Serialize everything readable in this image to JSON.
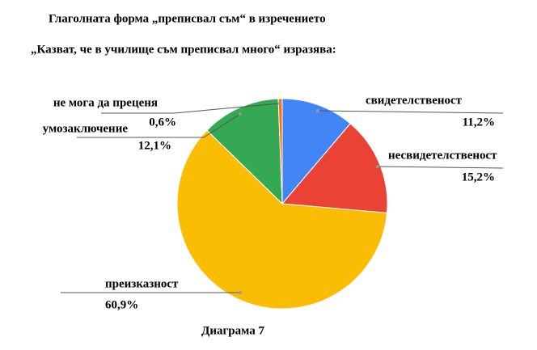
{
  "chart_data": {
    "type": "pie",
    "title": "Глаголната форма „преписвал съм“ в изречението",
    "subtitle": "„Казват, че в училище  съм преписвал много“ изразява:",
    "caption": "Диаграма 7",
    "categories": [
      "свидетелственост",
      "несвидетелственост",
      "преизказност",
      "умозаключение",
      "не мога да преценя"
    ],
    "values": [
      11.2,
      15.2,
      60.9,
      12.1,
      0.6
    ],
    "value_labels": [
      "11,2%",
      "15,2%",
      "60,9%",
      "12,1%",
      "0,6%"
    ],
    "colors": [
      "#4285f4",
      "#ea4335",
      "#fbbc04",
      "#34a853",
      "#ff6d01"
    ]
  }
}
